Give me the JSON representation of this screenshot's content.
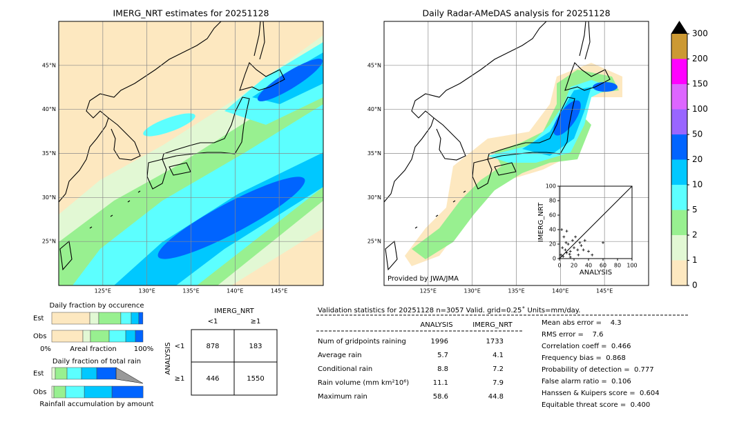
{
  "maps": [
    {
      "title": "IMERG_NRT estimates for 20251128",
      "lonlim": [
        120,
        150
      ],
      "latlim": [
        20,
        50
      ],
      "lonticks": [
        {
          "value": 125,
          "label": "125°E"
        },
        {
          "value": 130,
          "label": "130°E"
        },
        {
          "value": 135,
          "label": "135°E"
        },
        {
          "value": 140,
          "label": "140°E"
        },
        {
          "value": 145,
          "label": "145°E"
        }
      ],
      "latticks": [
        {
          "value": 25,
          "label": "25°N"
        },
        {
          "value": 30,
          "label": "30°N"
        },
        {
          "value": 35,
          "label": "35°N"
        },
        {
          "value": 40,
          "label": "40°N"
        },
        {
          "value": 45,
          "label": "45°N"
        }
      ]
    },
    {
      "title": "Daily Radar-AMeDAS analysis for 20251128",
      "credit": "Provided by JWA/JMA",
      "lonlim": [
        120,
        150
      ],
      "latlim": [
        20,
        50
      ],
      "lonticks": [
        {
          "value": 125,
          "label": "125°E"
        },
        {
          "value": 130,
          "label": "130°E"
        },
        {
          "value": 135,
          "label": "135°E"
        },
        {
          "value": 140,
          "label": "140°E"
        },
        {
          "value": 145,
          "label": "145°E"
        }
      ],
      "latticks": [
        {
          "value": 25,
          "label": "25°N"
        },
        {
          "value": 30,
          "label": "30°N"
        },
        {
          "value": 35,
          "label": "35°N"
        },
        {
          "value": 40,
          "label": "40°N"
        },
        {
          "value": 45,
          "label": "45°N"
        }
      ]
    }
  ],
  "colorbar": {
    "ticks": [
      0,
      1,
      2,
      5,
      10,
      20,
      50,
      100,
      150,
      200,
      300
    ],
    "colors": [
      "#fde8c0",
      "#e2f8d4",
      "#98f090",
      "#5cffff",
      "#00c8ff",
      "#0064ff",
      "#9966ff",
      "#dd66ff",
      "#ff00ff",
      "#cc9933"
    ]
  },
  "scatter": {
    "xlabel": "ANALYSIS",
    "ylabel": "IMERG_NRT",
    "xlim": [
      0,
      100
    ],
    "ylim": [
      0,
      100
    ],
    "xticks": [
      0,
      20,
      40,
      60,
      80,
      100
    ],
    "yticks": [
      0,
      20,
      40,
      60,
      80,
      100
    ],
    "x": [
      2,
      5,
      8,
      10,
      12,
      15,
      18,
      20,
      22,
      25,
      28,
      30,
      35,
      3,
      6,
      10,
      40,
      45,
      60,
      15,
      4,
      9,
      14,
      26,
      33
    ],
    "y": [
      5,
      3,
      12,
      8,
      20,
      10,
      25,
      15,
      30,
      12,
      22,
      18,
      25,
      40,
      30,
      38,
      10,
      5,
      22,
      2,
      15,
      22,
      6,
      5,
      12
    ]
  },
  "occurrence": {
    "title": "Daily fraction by occurence",
    "rows": [
      "Est",
      "Obs"
    ],
    "axis_labels": [
      "0%",
      "Areal fraction",
      "100%"
    ],
    "colors": [
      "#fde8c0",
      "#e2f8d4",
      "#98f090",
      "#5cffff",
      "#00c8ff",
      "#0064ff"
    ],
    "fractions": [
      [
        41.7,
        9.8,
        24.2,
        11.4,
        8.3,
        4.5
      ],
      [
        34.1,
        8.3,
        20.5,
        18.2,
        10.6,
        8.3
      ]
    ]
  },
  "total_rain": {
    "title": "Daily fraction of total rain",
    "rows": [
      "Est",
      "Obs"
    ],
    "footer": "Rainfall accumulation by amount",
    "colors": [
      "#e2f8d4",
      "#98f090",
      "#5cffff",
      "#00c8ff",
      "#0064ff"
    ],
    "fractions": [
      [
        3.8,
        12.9,
        15.9,
        16.7,
        21.2
      ],
      [
        2.3,
        12.9,
        20.5,
        30.3,
        34.1
      ]
    ]
  },
  "contingency": {
    "title": "IMERG_NRT",
    "col_labels": [
      "<1",
      "≥1"
    ],
    "row_title": "ANALYSIS",
    "row_labels": [
      "<1",
      "≥1"
    ],
    "cells": [
      [
        878,
        183
      ],
      [
        446,
        1550
      ]
    ]
  },
  "stats": {
    "header": "Validation statistics for 20251128  n=3057 Valid. grid=0.25˚ Units=mm/day.",
    "columns": [
      "ANALYSIS",
      "IMERG_NRT"
    ],
    "rows": [
      [
        "Num of gridpoints raining",
        1996,
        1733
      ],
      [
        "Average rain",
        5.7,
        4.1
      ],
      [
        "Conditional rain",
        8.8,
        7.2
      ],
      [
        "Rain volume (mm km²10⁶)",
        11.1,
        7.9
      ],
      [
        "Maximum rain",
        58.6,
        44.8
      ]
    ],
    "scores": [
      "Mean abs error =    4.3",
      "RMS error =    7.6",
      "Correlation coeff =  0.466",
      "Frequency bias =  0.868",
      "Probability of detection =  0.777",
      "False alarm ratio =  0.106",
      "Hanssen & Kuipers score =  0.604",
      "Equitable threat score =  0.400"
    ]
  }
}
